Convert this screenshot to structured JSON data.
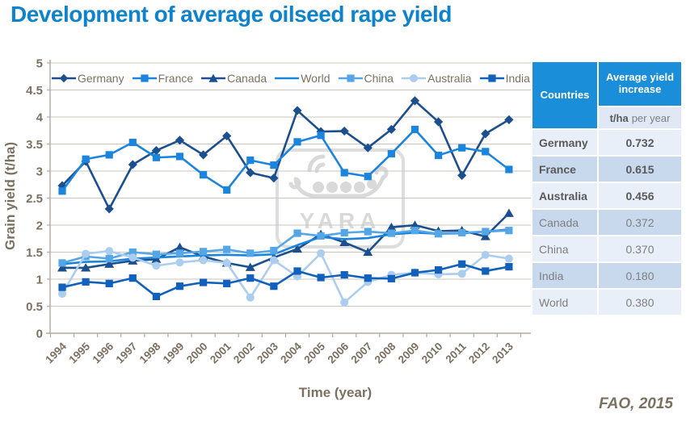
{
  "title": "Development of average oilseed rape yield",
  "source": "FAO, 2015",
  "colors": {
    "title_blue": "#0d82cd",
    "axis_text": "#7c7161",
    "gridline": "#cac6be",
    "axis_line": "#b0aba1",
    "table_header_blue": "#1b8ed9",
    "table_row_light": "#e9eff8",
    "table_row_dark": "#c8d9ee",
    "watermark_gray": "#d9d9d9"
  },
  "chart_data": {
    "type": "line",
    "title": "Development of average oilseed rape yield",
    "xlabel": "Time (year)",
    "ylabel": "Grain yield (t/ha)",
    "ylim": [
      0,
      5
    ],
    "ytick_step": 0.5,
    "grid": true,
    "legend_position": "top-inside",
    "x": [
      "1994",
      "1995",
      "1996",
      "1997",
      "1998",
      "1999",
      "2000",
      "2001",
      "2002",
      "2003",
      "2004",
      "2005",
      "2006",
      "2007",
      "2008",
      "2009",
      "2010",
      "2011",
      "2012",
      "2013"
    ],
    "series": [
      {
        "name": "Germany",
        "marker": "diamond",
        "color": "#1b4f8e",
        "values": [
          2.73,
          3.18,
          2.3,
          3.12,
          3.38,
          3.57,
          3.3,
          3.65,
          2.97,
          2.87,
          4.12,
          3.73,
          3.74,
          3.43,
          3.77,
          4.3,
          3.91,
          2.92,
          3.69,
          3.95
        ]
      },
      {
        "name": "France",
        "marker": "square",
        "color": "#1b84dd",
        "values": [
          2.63,
          3.22,
          3.3,
          3.53,
          3.25,
          3.27,
          2.93,
          2.65,
          3.2,
          3.11,
          3.54,
          3.66,
          2.97,
          2.9,
          3.32,
          3.77,
          3.29,
          3.43,
          3.36,
          3.03
        ]
      },
      {
        "name": "Canada",
        "marker": "triangle",
        "color": "#1b4f8e",
        "values": [
          1.21,
          1.21,
          1.28,
          1.34,
          1.37,
          1.59,
          1.42,
          1.3,
          1.22,
          1.4,
          1.56,
          1.83,
          1.68,
          1.5,
          1.96,
          2.0,
          1.89,
          1.9,
          1.79,
          2.22
        ]
      },
      {
        "name": "World",
        "marker": "none",
        "color": "#1b84dd",
        "values": [
          1.28,
          1.32,
          1.33,
          1.38,
          1.4,
          1.42,
          1.44,
          1.45,
          1.44,
          1.46,
          1.63,
          1.78,
          1.74,
          1.76,
          1.83,
          1.86,
          1.84,
          1.85,
          1.88,
          1.92
        ]
      },
      {
        "name": "China",
        "marker": "square",
        "color": "#55a6e6",
        "values": [
          1.3,
          1.42,
          1.38,
          1.5,
          1.46,
          1.48,
          1.51,
          1.55,
          1.48,
          1.53,
          1.85,
          1.8,
          1.86,
          1.88,
          1.85,
          1.9,
          1.84,
          1.86,
          1.88,
          1.9
        ]
      },
      {
        "name": "Australia",
        "marker": "circle",
        "color": "#abcdf0",
        "values": [
          0.73,
          1.47,
          1.52,
          1.4,
          1.25,
          1.31,
          1.35,
          1.3,
          0.66,
          1.35,
          1.05,
          1.48,
          0.57,
          0.95,
          1.08,
          1.12,
          1.09,
          1.1,
          1.45,
          1.38
        ]
      },
      {
        "name": "India",
        "marker": "square",
        "color": "#1060bc",
        "values": [
          0.85,
          0.95,
          0.92,
          1.02,
          0.68,
          0.87,
          0.94,
          0.92,
          1.02,
          0.87,
          1.15,
          1.03,
          1.08,
          1.02,
          1.01,
          1.12,
          1.17,
          1.28,
          1.15,
          1.23
        ]
      }
    ]
  },
  "table": {
    "col1_header": "Countries",
    "col2_header": "Average yield increase",
    "unit_bold": "t/ha",
    "unit_rest": "per year",
    "rows": [
      {
        "country": "Germany",
        "value": "0.732",
        "bold": true
      },
      {
        "country": "France",
        "value": "0.615",
        "bold": true
      },
      {
        "country": "Australia",
        "value": "0.456",
        "bold": true
      },
      {
        "country": "Canada",
        "value": "0.372",
        "bold": false
      },
      {
        "country": "China",
        "value": "0.370",
        "bold": false
      },
      {
        "country": "India",
        "value": "0.180",
        "bold": false
      },
      {
        "country": "World",
        "value": "0.380",
        "bold": false
      }
    ]
  },
  "watermark_text": "YARA"
}
